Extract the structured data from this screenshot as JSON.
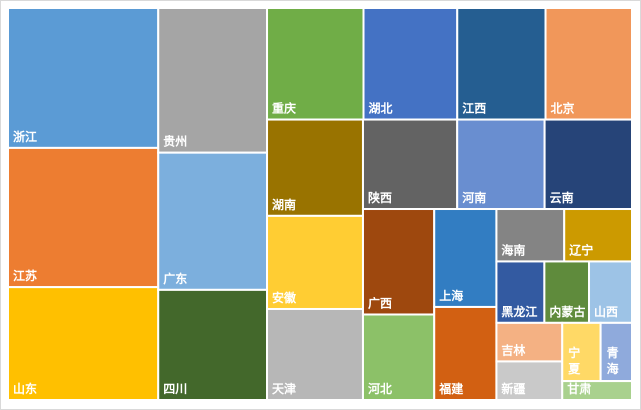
{
  "chart_data": {
    "type": "treemap",
    "categories": [
      "浙江",
      "江苏",
      "山东",
      "贵州",
      "广东",
      "四川",
      "重庆",
      "湖北",
      "江西",
      "北京",
      "湖南",
      "安徽",
      "天津",
      "陕西",
      "河南",
      "云南",
      "广西",
      "河北",
      "上海",
      "福建",
      "海南",
      "辽宁",
      "黑龙江",
      "内蒙古",
      "山西",
      "吉林",
      "新疆",
      "宁夏",
      "青海",
      "甘肃"
    ],
    "values": [
      207,
      206,
      167,
      155,
      147,
      118,
      106,
      103,
      97,
      95,
      91,
      88,
      86,
      83,
      77,
      77,
      74,
      60,
      60,
      57,
      35,
      35,
      29,
      27,
      26,
      25,
      25,
      22,
      18,
      13
    ],
    "colors": [
      "#5b9bd5",
      "#ed7d31",
      "#ffc000",
      "#a5a5a5",
      "#7cafdd",
      "#43682b",
      "#70ad47",
      "#4472c4",
      "#255e91",
      "#f1975a",
      "#997300",
      "#ffcd33",
      "#b7b7b7",
      "#636363",
      "#698ed0",
      "#264478",
      "#9e480e",
      "#8cc168",
      "#327dc2",
      "#d26012",
      "#848484",
      "#cc9a00",
      "#335aa1",
      "#5f8b3c",
      "#9dc3e6",
      "#f4b183",
      "#c9c9c9",
      "#ffd966",
      "#8faadc",
      "#a9d18e"
    ]
  }
}
